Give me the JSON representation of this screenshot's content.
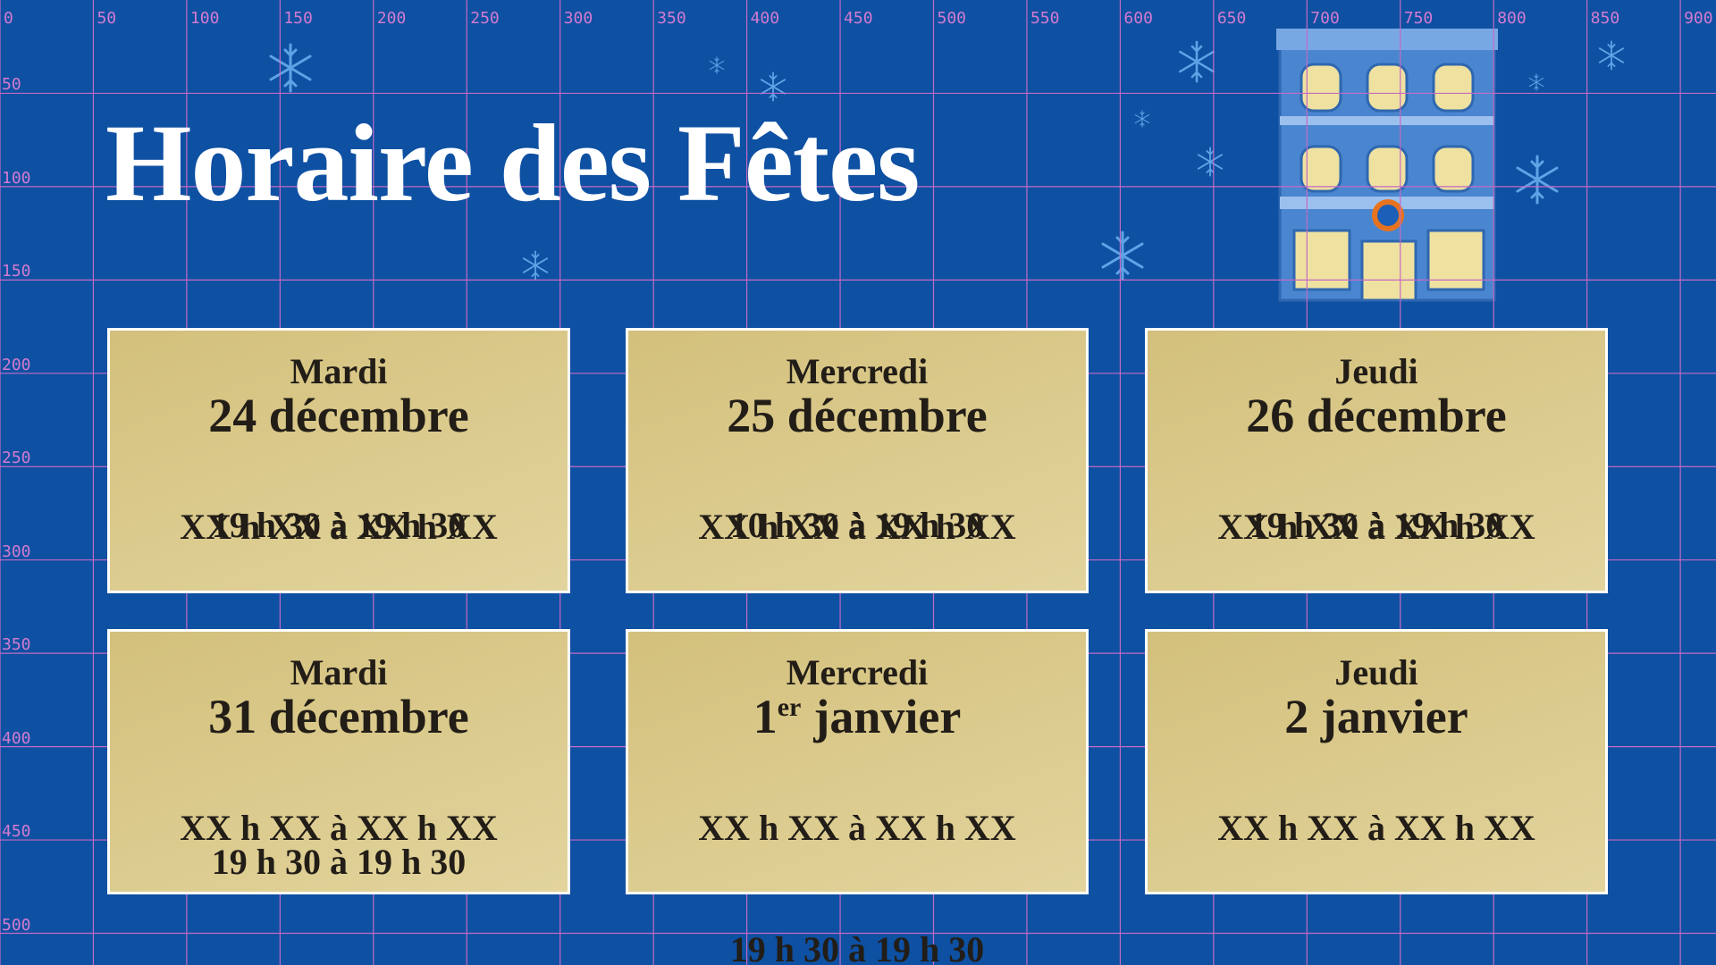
{
  "header": {
    "title": "Horaire des Fêtes"
  },
  "grid": {
    "x_labels": [
      0,
      50,
      100,
      150,
      200,
      250,
      300,
      350,
      400,
      450,
      500,
      550,
      600,
      650,
      700,
      750,
      800,
      850,
      900
    ],
    "y_labels": [
      50,
      100,
      150,
      200,
      250,
      300,
      350,
      400,
      450,
      500
    ]
  },
  "cards": [
    {
      "day": "Mardi",
      "date": "24 décembre",
      "hours_placeholder": "XX h XX à XX h XX",
      "hours": "19 h 30 à 19 h 30"
    },
    {
      "day": "Mercredi",
      "date": "25 décembre",
      "hours_placeholder": "XX h XX à XX h XX",
      "hours": "10 h 30 à 19 h 30"
    },
    {
      "day": "Jeudi",
      "date": "26 décembre",
      "hours_placeholder": "XX h XX à XX h XX",
      "hours": "19 h 30 à 19 h 30"
    },
    {
      "day": "Mardi",
      "date": "31 décembre",
      "hours_placeholder": "XX h XX à XX h XX",
      "hours": "19 h 30 à 19 h 30"
    },
    {
      "day": "Mercredi",
      "date": "1",
      "date_sup": "er",
      "date_rest": "janvier",
      "hours_placeholder": "XX h XX à XX h XX",
      "hours": "19 h 30 à 19 h 30"
    },
    {
      "day": "Jeudi",
      "date": "2 janvier",
      "hours_placeholder": "XX h XX à XX h XX"
    }
  ]
}
